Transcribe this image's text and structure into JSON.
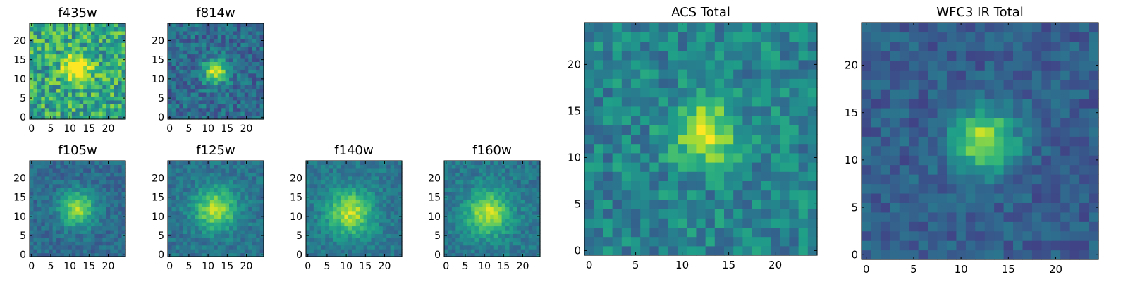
{
  "figure": {
    "background": "#ffffff"
  },
  "chart_data": [
    {
      "type": "heatmap",
      "title": "f435w",
      "grid_size": 25,
      "xlim": [
        0,
        24
      ],
      "ylim": [
        0,
        24
      ],
      "xticks": [
        0,
        5,
        10,
        15,
        20
      ],
      "yticks": [
        0,
        5,
        10,
        15,
        20
      ],
      "center": [
        12,
        13
      ],
      "sigma": 2.5,
      "peak": 0.6,
      "background": 0.6,
      "noise": 0.25,
      "seed": 11,
      "colormap": "viridis"
    },
    {
      "type": "heatmap",
      "title": "f814w",
      "grid_size": 25,
      "xlim": [
        0,
        24
      ],
      "ylim": [
        0,
        24
      ],
      "xticks": [
        0,
        5,
        10,
        15,
        20
      ],
      "yticks": [
        0,
        5,
        10,
        15,
        20
      ],
      "center": [
        12,
        12
      ],
      "sigma": 2.2,
      "peak": 0.6,
      "background": 0.35,
      "noise": 0.15,
      "seed": 23,
      "colormap": "viridis"
    },
    {
      "type": "heatmap",
      "title": "f105w",
      "grid_size": 25,
      "xlim": [
        0,
        24
      ],
      "ylim": [
        0,
        24
      ],
      "xticks": [
        0,
        5,
        10,
        15,
        20
      ],
      "yticks": [
        0,
        5,
        10,
        15,
        20
      ],
      "center": [
        12,
        12
      ],
      "sigma": 3.2,
      "peak": 0.5,
      "background": 0.35,
      "noise": 0.1,
      "seed": 37,
      "colormap": "viridis"
    },
    {
      "type": "heatmap",
      "title": "f125w",
      "grid_size": 25,
      "xlim": [
        0,
        24
      ],
      "ylim": [
        0,
        24
      ],
      "xticks": [
        0,
        5,
        10,
        15,
        20
      ],
      "yticks": [
        0,
        5,
        10,
        15,
        20
      ],
      "center": [
        12,
        12
      ],
      "sigma": 3.8,
      "peak": 0.5,
      "background": 0.38,
      "noise": 0.1,
      "seed": 41,
      "colormap": "viridis"
    },
    {
      "type": "heatmap",
      "title": "f140w",
      "grid_size": 25,
      "xlim": [
        0,
        24
      ],
      "ylim": [
        0,
        24
      ],
      "xticks": [
        0,
        5,
        10,
        15,
        20
      ],
      "yticks": [
        0,
        5,
        10,
        15,
        20
      ],
      "center": [
        11,
        11
      ],
      "sigma": 4.0,
      "peak": 0.5,
      "background": 0.4,
      "noise": 0.1,
      "seed": 53,
      "colormap": "viridis"
    },
    {
      "type": "heatmap",
      "title": "f160w",
      "grid_size": 25,
      "xlim": [
        0,
        24
      ],
      "ylim": [
        0,
        24
      ],
      "xticks": [
        0,
        5,
        10,
        15,
        20
      ],
      "yticks": [
        0,
        5,
        10,
        15,
        20
      ],
      "center": [
        11,
        11
      ],
      "sigma": 4.0,
      "peak": 0.5,
      "background": 0.4,
      "noise": 0.1,
      "seed": 67,
      "colormap": "viridis"
    },
    {
      "type": "heatmap",
      "title": "ACS Total",
      "grid_size": 25,
      "xlim": [
        0,
        24
      ],
      "ylim": [
        0,
        24
      ],
      "xticks": [
        0,
        5,
        10,
        15,
        20
      ],
      "yticks": [
        0,
        5,
        10,
        15,
        20
      ],
      "center": [
        12.5,
        12.5
      ],
      "sigma": 2.4,
      "peak": 0.5,
      "background": 0.45,
      "noise": 0.16,
      "seed": 79,
      "colormap": "viridis"
    },
    {
      "type": "heatmap",
      "title": "WFC3 IR Total",
      "grid_size": 25,
      "xlim": [
        0,
        24
      ],
      "ylim": [
        0,
        24
      ],
      "xticks": [
        0,
        5,
        10,
        15,
        20
      ],
      "yticks": [
        0,
        5,
        10,
        15,
        20
      ],
      "center": [
        12.5,
        12
      ],
      "sigma": 2.3,
      "peak": 0.6,
      "background": 0.3,
      "noise": 0.1,
      "seed": 83,
      "colormap": "viridis"
    }
  ]
}
